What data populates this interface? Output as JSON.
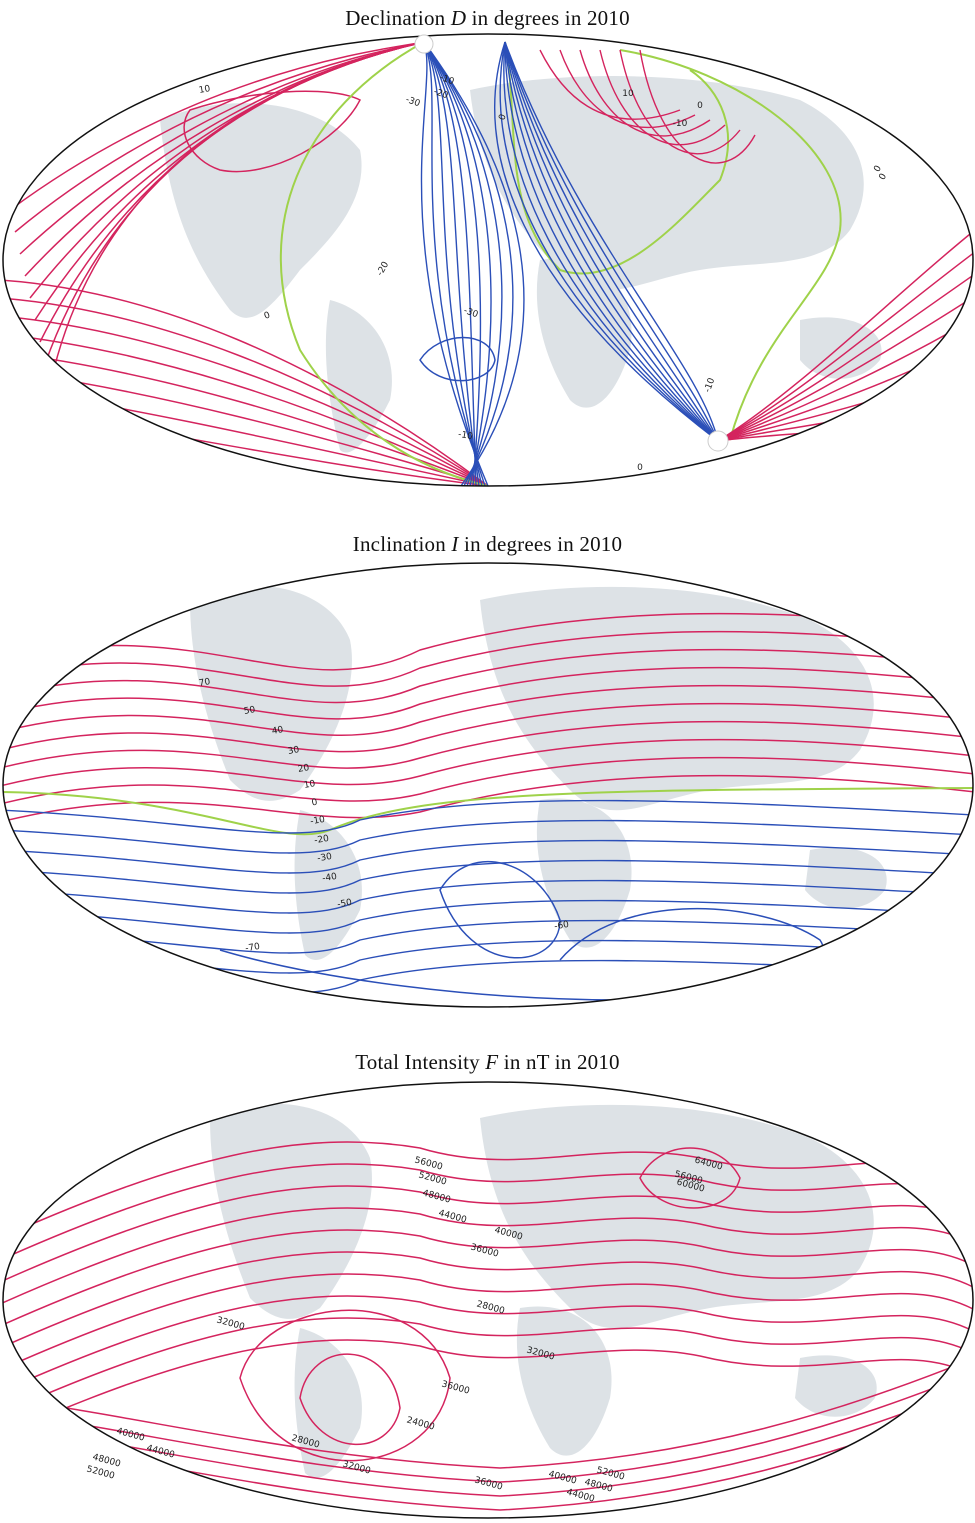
{
  "colors": {
    "positive": "#d4245e",
    "negative": "#2b4fb8",
    "zero": "#9fd24a",
    "land": "#dde2e6",
    "outline": "#111111"
  },
  "panels": [
    {
      "title_pre": "Declination ",
      "title_var": "D",
      "title_post": " in degrees in 2010",
      "contour_labels": [
        "10",
        "0",
        "-10",
        "-20",
        "-30",
        "10",
        "0",
        "-10",
        "0",
        "0",
        "-20",
        "-30",
        "-10",
        "-10",
        "0",
        "0"
      ]
    },
    {
      "title_pre": "Inclination ",
      "title_var": "I",
      "title_post": " in degrees in 2010",
      "contour_labels": [
        "70",
        "50",
        "40",
        "30",
        "20",
        "10",
        "0",
        "-10",
        "-20",
        "-30",
        "-40",
        "-50",
        "-60",
        "-70"
      ]
    },
    {
      "title_pre": "Total Intensity ",
      "title_var": "F",
      "title_post": " in nT in 2010",
      "contour_labels": [
        "56000",
        "52000",
        "48000",
        "44000",
        "40000",
        "36000",
        "32000",
        "28000",
        "32000",
        "36000",
        "24000",
        "28000",
        "32000",
        "36000",
        "40000",
        "44000",
        "48000",
        "52000",
        "56000",
        "60000",
        "64000",
        "40000",
        "44000",
        "48000",
        "52000"
      ]
    }
  ]
}
